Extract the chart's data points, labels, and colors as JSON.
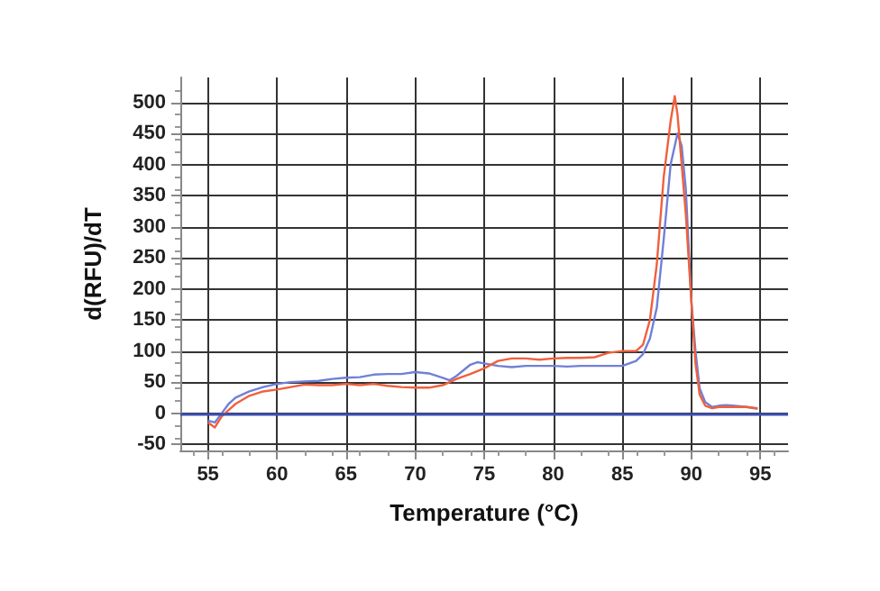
{
  "chart_data": {
    "type": "line",
    "xlabel": "Temperature (°C)",
    "ylabel": "d(RFU)/dT",
    "xlim": [
      53,
      97
    ],
    "xticks": [
      55,
      60,
      65,
      70,
      75,
      80,
      85,
      90,
      95
    ],
    "ylim": [
      -60,
      540
    ],
    "yticks": [
      -50,
      0,
      50,
      100,
      150,
      200,
      250,
      300,
      350,
      400,
      450,
      500
    ],
    "grid": true,
    "marker": "none",
    "line_style": "solid",
    "ref_lines": [
      {
        "axis": "y",
        "value": 0,
        "color": "#3d4fb0"
      }
    ],
    "series": [
      {
        "color": "#7080d8",
        "x": [
          55,
          55.5,
          56,
          56.5,
          57,
          58,
          59,
          60,
          61,
          62,
          63,
          64,
          65,
          66,
          67,
          68,
          69,
          70,
          71,
          72,
          72.5,
          73,
          74,
          74.5,
          75,
          76,
          77,
          78,
          79,
          80,
          81,
          82,
          83,
          84,
          85,
          86,
          86.5,
          87,
          87.5,
          88,
          88.5,
          89,
          89.3,
          89.6,
          90,
          90.3,
          90.6,
          91,
          91.5,
          92,
          92.5,
          93,
          94,
          94.8
        ],
        "values": [
          -12,
          -15,
          0,
          15,
          25,
          35,
          42,
          47,
          50,
          51,
          52,
          55,
          57,
          58,
          62,
          63,
          63,
          66,
          64,
          57,
          53,
          60,
          78,
          82,
          80,
          76,
          74,
          76,
          76,
          76,
          75,
          76,
          76,
          76,
          76,
          84,
          95,
          120,
          170,
          280,
          400,
          450,
          430,
          360,
          180,
          100,
          40,
          18,
          10,
          12,
          13,
          12,
          10,
          8
        ]
      },
      {
        "color": "#f0603c",
        "x": [
          55,
          55.5,
          56,
          56.5,
          57,
          58,
          59,
          60,
          61,
          62,
          63,
          64,
          65,
          66,
          67,
          68,
          69,
          70,
          71,
          72,
          73,
          74,
          75,
          76,
          77,
          78,
          79,
          80,
          81,
          82,
          83,
          84,
          85,
          86,
          86.5,
          87,
          87.5,
          88,
          88.5,
          88.8,
          89,
          89.3,
          89.6,
          90,
          90.3,
          90.6,
          91,
          91.5,
          92,
          93,
          94,
          94.8
        ],
        "values": [
          -15,
          -23,
          -5,
          5,
          15,
          28,
          35,
          38,
          42,
          46,
          45,
          45,
          47,
          45,
          47,
          44,
          42,
          41,
          41,
          45,
          55,
          63,
          72,
          84,
          88,
          88,
          86,
          88,
          89,
          89,
          90,
          97,
          100,
          100,
          110,
          150,
          240,
          380,
          470,
          510,
          480,
          400,
          320,
          180,
          80,
          30,
          12,
          8,
          10,
          10,
          10,
          7
        ]
      }
    ]
  }
}
